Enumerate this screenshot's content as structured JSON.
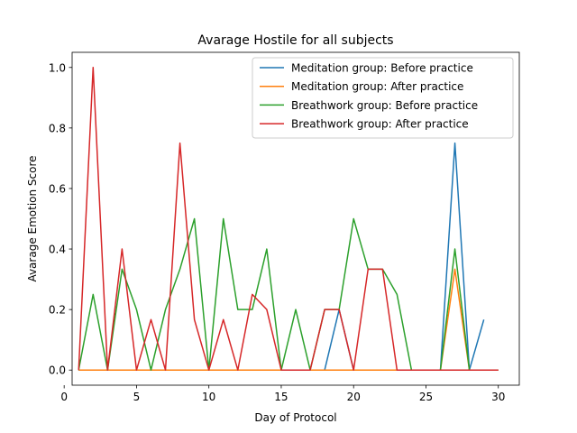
{
  "chart_data": {
    "type": "line",
    "title": "Avarage Hostile for all subjects",
    "xlabel": "Day of Protocol",
    "ylabel": "Avarage Emotion Score",
    "xlim": [
      0.55,
      31.45
    ],
    "ylim": [
      -0.05,
      1.05
    ],
    "xticks": [
      0,
      5,
      10,
      15,
      20,
      25,
      30
    ],
    "yticks": [
      0.0,
      0.2,
      0.4,
      0.6,
      0.8,
      1.0
    ],
    "ytick_labels": [
      "0.0",
      "0.2",
      "0.4",
      "0.6",
      "0.8",
      "1.0"
    ],
    "grid": false,
    "legend_position": "top-right",
    "series": [
      {
        "name": "Meditation group: Before practice",
        "color": "#1f77b4",
        "x": [
          1,
          2,
          3,
          4,
          5,
          6,
          7,
          8,
          9,
          10,
          11,
          12,
          13,
          14,
          15,
          16,
          17,
          18,
          19,
          20,
          21,
          22,
          23,
          24,
          25,
          26,
          27,
          28,
          29
        ],
        "y": [
          0,
          0,
          0,
          0,
          0,
          0,
          0,
          0,
          0,
          0,
          0,
          0,
          0,
          0,
          0,
          0,
          0,
          0,
          0.2,
          0,
          0,
          0,
          0,
          0,
          0,
          0,
          0.75,
          0,
          0.1667
        ]
      },
      {
        "name": "Meditation group: After practice",
        "color": "#ff7f0e",
        "x": [
          1,
          2,
          3,
          4,
          5,
          6,
          7,
          8,
          9,
          10,
          11,
          12,
          13,
          14,
          15,
          16,
          17,
          18,
          19,
          20,
          21,
          22,
          23,
          24,
          25,
          26,
          27,
          28,
          29,
          30
        ],
        "y": [
          0,
          0,
          0,
          0,
          0,
          0,
          0,
          0,
          0,
          0,
          0,
          0,
          0,
          0,
          0,
          0,
          0,
          0,
          0,
          0,
          0,
          0,
          0,
          0,
          0,
          0,
          0.3333,
          0,
          0,
          0
        ]
      },
      {
        "name": "Breathwork group: Before practice",
        "color": "#2ca02c",
        "x": [
          1,
          2,
          3,
          4,
          5,
          6,
          7,
          8,
          9,
          10,
          11,
          12,
          13,
          14,
          15,
          16,
          17,
          18,
          19,
          20,
          21,
          22,
          23,
          24,
          25,
          26,
          27,
          28,
          29,
          30
        ],
        "y": [
          0,
          0.25,
          0,
          0.3333,
          0.2,
          0,
          0.2,
          0.3333,
          0.5,
          0,
          0.5,
          0.2,
          0.2,
          0.4,
          0,
          0.2,
          0,
          0.2,
          0.2,
          0.5,
          0.3333,
          0.3333,
          0.25,
          0,
          0,
          0,
          0.4,
          0,
          0,
          0
        ]
      },
      {
        "name": "Breathwork group: After practice",
        "color": "#d62728",
        "x": [
          1,
          2,
          3,
          4,
          5,
          6,
          7,
          8,
          9,
          10,
          11,
          12,
          13,
          14,
          15,
          16,
          17,
          18,
          19,
          20,
          21,
          22,
          23,
          24,
          25,
          26,
          27,
          28,
          29,
          30
        ],
        "y": [
          0,
          1.0,
          0,
          0.4,
          0,
          0.1667,
          0,
          0.75,
          0.1667,
          0,
          0.1667,
          0,
          0.25,
          0.2,
          0,
          0,
          0,
          0.2,
          0.2,
          0,
          0.3333,
          0.3333,
          0,
          0,
          0,
          0,
          0,
          0,
          0,
          0
        ]
      }
    ]
  }
}
